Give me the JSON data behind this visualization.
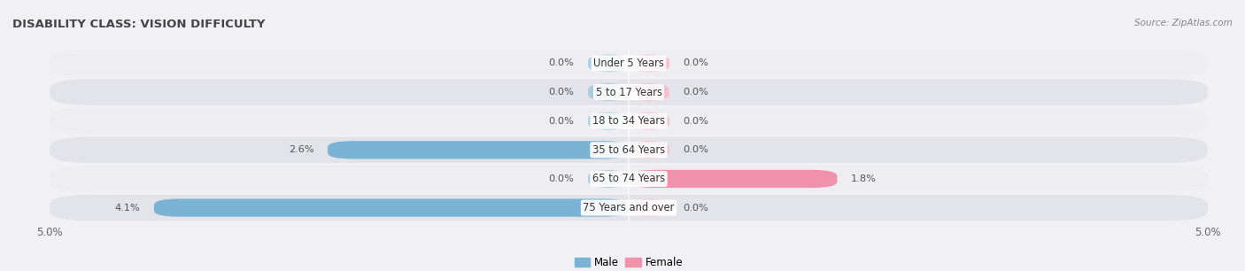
{
  "title": "DISABILITY CLASS: VISION DIFFICULTY",
  "source_text": "Source: ZipAtlas.com",
  "categories": [
    "Under 5 Years",
    "5 to 17 Years",
    "18 to 34 Years",
    "35 to 64 Years",
    "65 to 74 Years",
    "75 Years and over"
  ],
  "male_values": [
    0.0,
    0.0,
    0.0,
    2.6,
    0.0,
    4.1
  ],
  "female_values": [
    0.0,
    0.0,
    0.0,
    0.0,
    1.8,
    0.0
  ],
  "male_color": "#7ab3d4",
  "female_color": "#f093aa",
  "male_stub_color": "#aacce0",
  "female_stub_color": "#f8bece",
  "row_bg_odd": "#ededf2",
  "row_bg_even": "#e3e3ea",
  "max_val": 5.0,
  "stub_val": 0.35,
  "title_fontsize": 9.5,
  "label_fontsize": 8,
  "tick_fontsize": 8.5,
  "source_fontsize": 7.5
}
